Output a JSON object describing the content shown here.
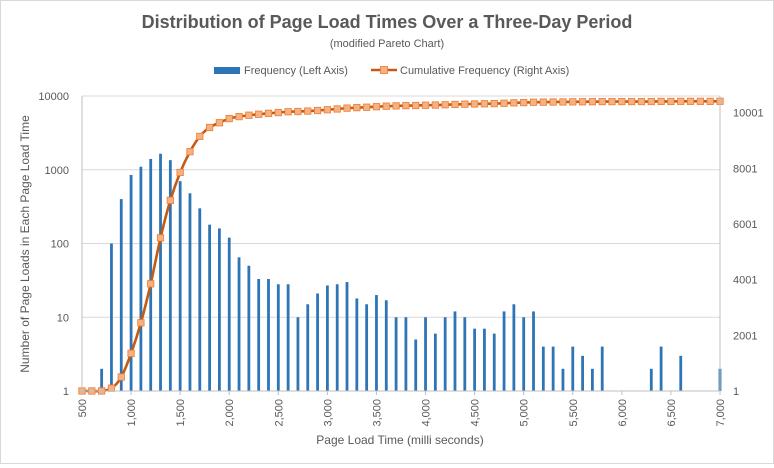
{
  "chart_data": {
    "type": "bar",
    "title": "Distribution of Page Load Times Over a Three-Day Period",
    "subtitle": "(modified Pareto Chart)",
    "xlabel": "Page Load Time (milli seconds)",
    "ylabel": "Number of Page Loads in Each Page Load Time",
    "y_scale": "log",
    "ylim": [
      1,
      10000
    ],
    "y_ticks": [
      "1",
      "10",
      "100",
      "1000",
      "10000"
    ],
    "y2lim": [
      1,
      10601
    ],
    "y2_ticks": [
      "1",
      "2001",
      "4001",
      "6001",
      "8001",
      "10001"
    ],
    "xlim": [
      500,
      7000
    ],
    "x_ticks": [
      "500",
      "1,000",
      "1,500",
      "2,000",
      "2,500",
      "3,000",
      "3,500",
      "4,000",
      "4,500",
      "5,000",
      "5,500",
      "6,000",
      "6,500",
      "7,000"
    ],
    "legend_position": "top",
    "colors": {
      "bar": "#2e75b6",
      "line": "#c55a11",
      "marker": "#f4b183",
      "axis": "#bfbfbf",
      "text": "#595959",
      "title": "#595959"
    },
    "series": [
      {
        "name": "Frequency (Left Axis)",
        "type": "bar",
        "axis": "left",
        "x": [
          700,
          800,
          900,
          1000,
          1100,
          1200,
          1300,
          1400,
          1500,
          1600,
          1700,
          1800,
          1900,
          2000,
          2100,
          2200,
          2300,
          2400,
          2500,
          2600,
          2700,
          2800,
          2900,
          3000,
          3100,
          3200,
          3300,
          3400,
          3500,
          3600,
          3700,
          3800,
          3900,
          4000,
          4100,
          4200,
          4300,
          4400,
          4500,
          4600,
          4700,
          4800,
          4900,
          5000,
          5100,
          5200,
          5300,
          5400,
          5500,
          5600,
          5700,
          5800,
          6300,
          6400,
          6600,
          7000
        ],
        "values": [
          2,
          100,
          400,
          850,
          1100,
          1400,
          1650,
          1350,
          700,
          480,
          300,
          180,
          160,
          120,
          65,
          50,
          33,
          33,
          28,
          28,
          10,
          15,
          21,
          27,
          28,
          30,
          18,
          15,
          20,
          17,
          10,
          10,
          5,
          10,
          6,
          10,
          12,
          10,
          7,
          7,
          6,
          12,
          15,
          10,
          12,
          4,
          4,
          2,
          4,
          3,
          2,
          4,
          2,
          4,
          3,
          2
        ]
      },
      {
        "name": "Cumulative Frequency (Right Axis)",
        "type": "line",
        "axis": "right",
        "x": [
          500,
          600,
          700,
          800,
          900,
          1000,
          1100,
          1200,
          1300,
          1400,
          1500,
          1600,
          1700,
          1800,
          1900,
          2000,
          2100,
          2200,
          2300,
          2400,
          2500,
          2600,
          2700,
          2800,
          2900,
          3000,
          3100,
          3200,
          3300,
          3400,
          3500,
          3600,
          3700,
          3800,
          3900,
          4000,
          4100,
          4200,
          4300,
          4400,
          4500,
          4600,
          4700,
          4800,
          4900,
          5000,
          5100,
          5200,
          5300,
          5400,
          5500,
          5600,
          5700,
          5800,
          5900,
          6000,
          6100,
          6200,
          6300,
          6400,
          6500,
          6600,
          6700,
          6800,
          6900,
          7000
        ],
        "values": [
          1,
          1,
          3,
          103,
          503,
          1353,
          2453,
          3853,
          5503,
          6853,
          7853,
          8600,
          9150,
          9470,
          9640,
          9790,
          9860,
          9910,
          9945,
          9978,
          10006,
          10034,
          10044,
          10059,
          10080,
          10107,
          10135,
          10165,
          10183,
          10198,
          10218,
          10235,
          10245,
          10255,
          10260,
          10270,
          10276,
          10286,
          10298,
          10308,
          10315,
          10322,
          10328,
          10340,
          10355,
          10365,
          10377,
          10381,
          10385,
          10387,
          10391,
          10394,
          10396,
          10400,
          10400,
          10400,
          10400,
          10400,
          10402,
          10406,
          10406,
          10409,
          10409,
          10409,
          10409,
          10411
        ]
      }
    ]
  }
}
